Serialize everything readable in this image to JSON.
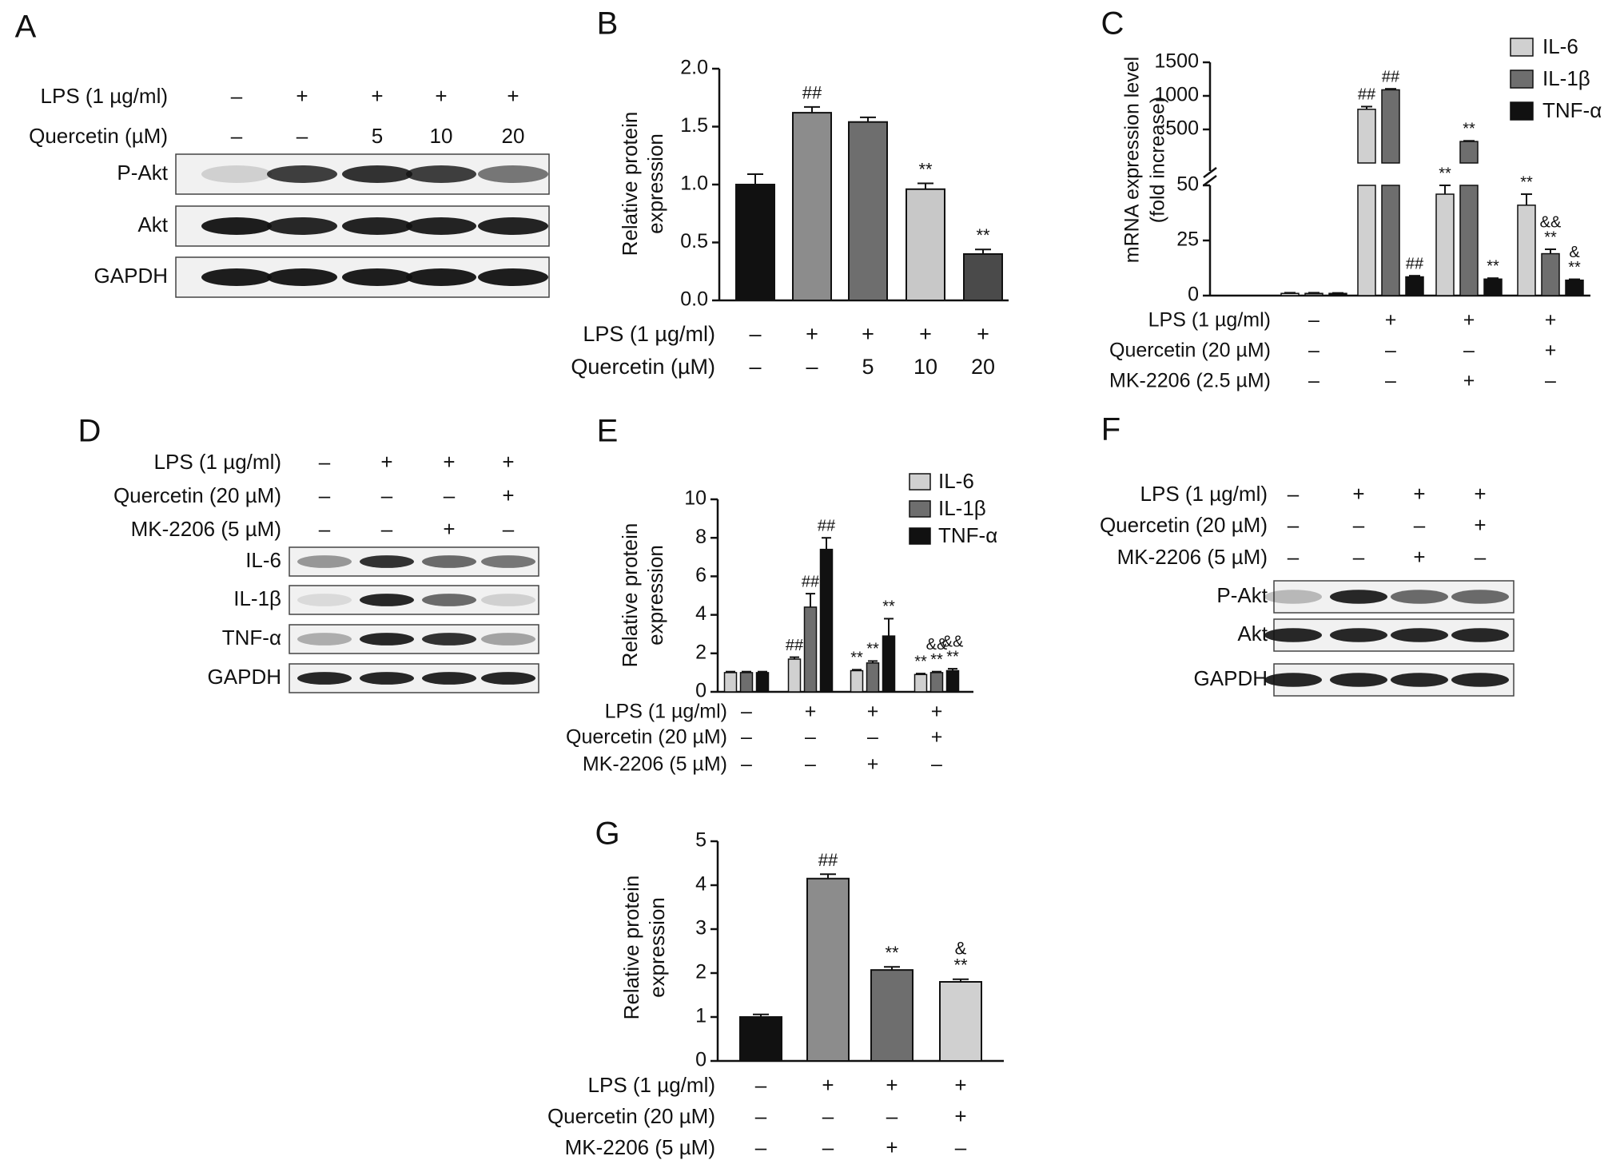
{
  "chart_data": [
    {
      "panel": "A",
      "type": "western-blot",
      "conditions": [
        {
          "label": "LPS (1 µg/ml)",
          "values": [
            "–",
            "+",
            "+",
            "+",
            "+"
          ]
        },
        {
          "label": "Quercetin (µM)",
          "values": [
            "–",
            "–",
            "5",
            "10",
            "20"
          ]
        }
      ],
      "bands": [
        "P-Akt",
        "Akt",
        "GAPDH"
      ]
    },
    {
      "panel": "B",
      "type": "bar",
      "ylabel": "Relative protein expression",
      "ylim": [
        0,
        2.0
      ],
      "yticks": [
        "0.0",
        "0.5",
        "1.0",
        "1.5",
        "2.0"
      ],
      "values": [
        1.0,
        1.62,
        1.54,
        0.96,
        0.4
      ],
      "errors": [
        0.09,
        0.05,
        0.04,
        0.05,
        0.04
      ],
      "annotations": [
        "",
        "##",
        "",
        "**",
        "**"
      ],
      "colors": [
        "#111111",
        "#8c8c8c",
        "#6e6e6e",
        "#c8c8c8",
        "#4a4a4a"
      ],
      "conditions": [
        {
          "label": "LPS (1 µg/ml)",
          "values": [
            "–",
            "+",
            "+",
            "+",
            "+"
          ]
        },
        {
          "label": "Quercetin (µM)",
          "values": [
            "–",
            "–",
            "5",
            "10",
            "20"
          ]
        }
      ]
    },
    {
      "panel": "C",
      "type": "bar",
      "ylabel": "mRNA expression level (fold increase)",
      "ylabel_lines": [
        "mRNA expression level",
        "(fold increase)"
      ],
      "axis_break": true,
      "yticks_lower": [
        "0",
        "25",
        "50"
      ],
      "yticks_upper": [
        "500",
        "1000",
        "1500"
      ],
      "series": [
        {
          "name": "IL-6",
          "color": "#d0d0d0",
          "values": [
            1,
            800,
            46,
            41
          ],
          "errors": [
            0.3,
            40,
            4,
            5
          ],
          "annotations": [
            "",
            "##",
            "**",
            "**"
          ]
        },
        {
          "name": "IL-1β",
          "color": "#6e6e6e",
          "values": [
            1,
            1090,
            320,
            19
          ],
          "errors": [
            0.3,
            15,
            10,
            2
          ],
          "annotations": [
            "",
            "##",
            "**",
            "&&\n**"
          ]
        },
        {
          "name": "TNF-α",
          "color": "#111111",
          "values": [
            1,
            8.5,
            7.5,
            7
          ],
          "errors": [
            0.2,
            0.5,
            0.4,
            0.4
          ],
          "annotations": [
            "",
            "##",
            "**",
            "&\n**"
          ]
        }
      ],
      "conditions": [
        {
          "label": "LPS (1 µg/ml)",
          "values": [
            "–",
            "+",
            "+",
            "+"
          ]
        },
        {
          "label": "Quercetin (20 µM)",
          "values": [
            "–",
            "–",
            "–",
            "+"
          ]
        },
        {
          "label": "MK-2206 (2.5 µM)",
          "values": [
            "–",
            "–",
            "+",
            "–"
          ]
        }
      ]
    },
    {
      "panel": "D",
      "type": "western-blot",
      "conditions": [
        {
          "label": "LPS (1 µg/ml)",
          "values": [
            "–",
            "+",
            "+",
            "+"
          ]
        },
        {
          "label": "Quercetin (20 µM)",
          "values": [
            "–",
            "–",
            "–",
            "+"
          ]
        },
        {
          "label": "MK-2206 (5 µM)",
          "values": [
            "–",
            "–",
            "+",
            "–"
          ]
        }
      ],
      "bands": [
        "IL-6",
        "IL-1β",
        "TNF-α",
        "GAPDH"
      ]
    },
    {
      "panel": "E",
      "type": "bar",
      "ylabel": "Relative protein expression",
      "ylim": [
        0,
        10
      ],
      "yticks": [
        "0",
        "2",
        "4",
        "6",
        "8",
        "10"
      ],
      "series": [
        {
          "name": "IL-6",
          "color": "#d0d0d0",
          "values": [
            1.0,
            1.7,
            1.1,
            0.9
          ],
          "errors": [
            0.05,
            0.1,
            0.05,
            0.05
          ],
          "annotations": [
            "",
            "##",
            "**",
            "**"
          ]
        },
        {
          "name": "IL-1β",
          "color": "#6e6e6e",
          "values": [
            1.0,
            4.4,
            1.5,
            1.0
          ],
          "errors": [
            0.05,
            0.7,
            0.1,
            0.05
          ],
          "annotations": [
            "",
            "##",
            "**",
            "&&\n**"
          ]
        },
        {
          "name": "TNF-α",
          "color": "#111111",
          "values": [
            1.0,
            7.4,
            2.9,
            1.1
          ],
          "errors": [
            0.05,
            0.6,
            0.9,
            0.1
          ],
          "annotations": [
            "",
            "##",
            "**",
            "&&\n**"
          ]
        }
      ],
      "conditions": [
        {
          "label": "LPS (1 µg/ml)",
          "values": [
            "–",
            "+",
            "+",
            "+"
          ]
        },
        {
          "label": "Quercetin (20 µM)",
          "values": [
            "–",
            "–",
            "–",
            "+"
          ]
        },
        {
          "label": "MK-2206 (5 µM)",
          "values": [
            "–",
            "–",
            "+",
            "–"
          ]
        }
      ]
    },
    {
      "panel": "F",
      "type": "western-blot",
      "conditions": [
        {
          "label": "LPS (1 µg/ml)",
          "values": [
            "–",
            "+",
            "+",
            "+"
          ]
        },
        {
          "label": "Quercetin (20 µM)",
          "values": [
            "–",
            "–",
            "–",
            "+"
          ]
        },
        {
          "label": "MK-2206 (5 µM)",
          "values": [
            "–",
            "–",
            "+",
            "–"
          ]
        }
      ],
      "bands": [
        "P-Akt",
        "Akt",
        "GAPDH"
      ]
    },
    {
      "panel": "G",
      "type": "bar",
      "ylabel": "Relative protein expression",
      "ylim": [
        0,
        5
      ],
      "yticks": [
        "0",
        "1",
        "2",
        "3",
        "4",
        "5"
      ],
      "values": [
        1.0,
        4.15,
        2.07,
        1.8
      ],
      "errors": [
        0.06,
        0.1,
        0.07,
        0.06
      ],
      "annotations": [
        "",
        "##",
        "**",
        "&\n**"
      ],
      "colors": [
        "#111111",
        "#8c8c8c",
        "#6e6e6e",
        "#d0d0d0"
      ],
      "conditions": [
        {
          "label": "LPS (1 µg/ml)",
          "values": [
            "–",
            "+",
            "+",
            "+"
          ]
        },
        {
          "label": "Quercetin (20 µM)",
          "values": [
            "–",
            "–",
            "–",
            "+"
          ]
        },
        {
          "label": "MK-2206 (5 µM)",
          "values": [
            "–",
            "–",
            "+",
            "–"
          ]
        }
      ]
    }
  ]
}
